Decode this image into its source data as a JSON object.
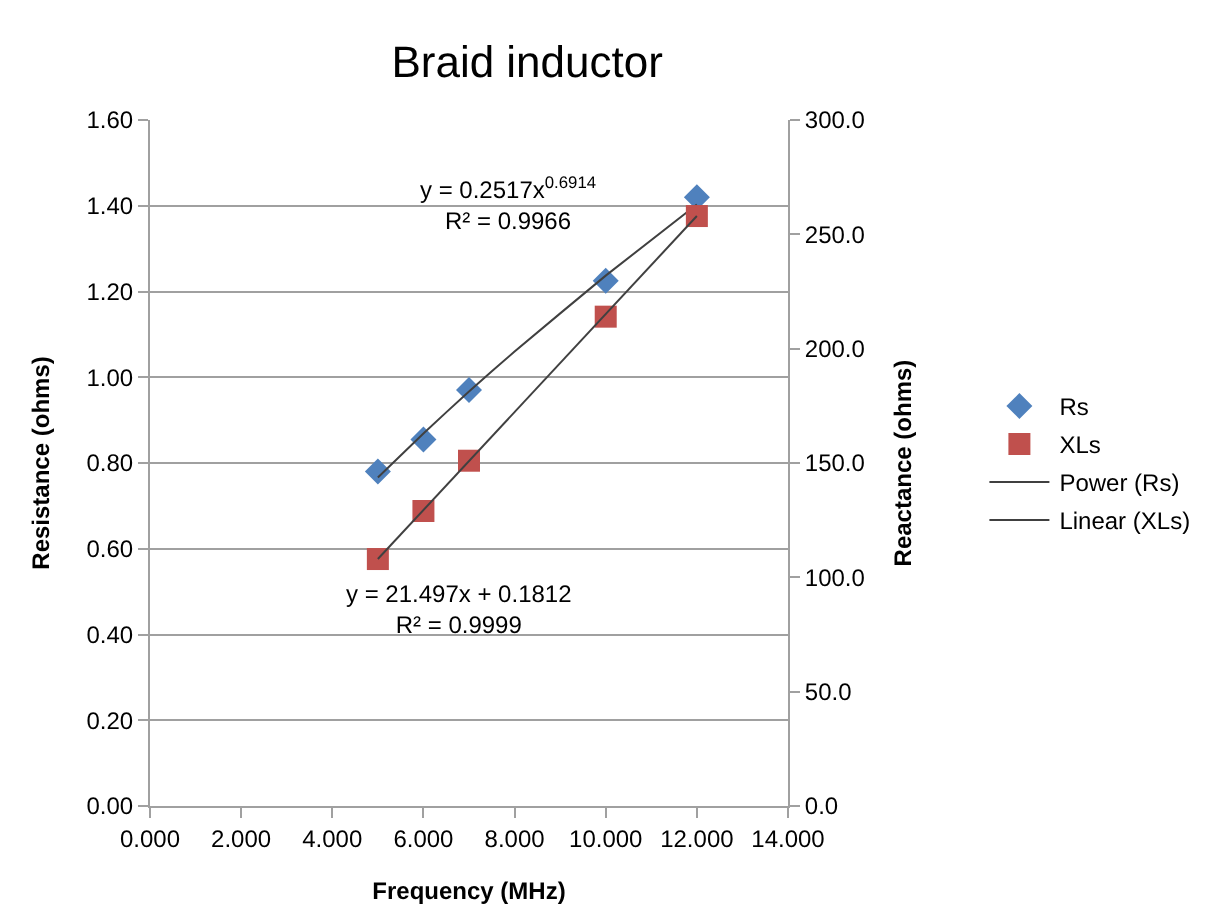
{
  "chart_data": {
    "type": "scatter",
    "title": "Braid inductor",
    "xlabel": "Frequency (MHz)",
    "ylabel": "Resistance (ohms)",
    "y2label": "Reactance (ohms)",
    "x": [
      5,
      6,
      7,
      10,
      12
    ],
    "series": [
      {
        "name": "Rs",
        "color": "#4f81bd",
        "marker": "diamond",
        "values": [
          0.78,
          0.855,
          0.97,
          1.225,
          1.42
        ]
      },
      {
        "name": "XLs",
        "color": "#c0504d",
        "marker": "square",
        "axis": "y2",
        "values": [
          108,
          129,
          151,
          214,
          258
        ]
      },
      {
        "name": "Power (Rs)",
        "type": "line",
        "color": "#404040",
        "marker": "none",
        "x": [
          5,
          6,
          7,
          8,
          10,
          12
        ],
        "values": [
          0.766,
          0.869,
          0.967,
          1.06,
          1.237,
          1.403
        ]
      },
      {
        "name": "Linear (XLs)",
        "type": "line",
        "color": "#404040",
        "marker": "none",
        "axis": "y2",
        "x": [
          5,
          12
        ],
        "values": [
          108,
          258
        ]
      }
    ],
    "annotations": [
      "y = 0.2517x$^{0.6914}$\nR² = 0.9966",
      "y = 21.497x + 0.1812\nR² = 0.9999"
    ],
    "xlim": [
      0,
      14
    ],
    "xticks": [
      {
        "value": 0,
        "label": "0.000"
      },
      {
        "value": 2,
        "label": "2.000"
      },
      {
        "value": 4,
        "label": "4.000"
      },
      {
        "value": 6,
        "label": "6.000"
      },
      {
        "value": 8,
        "label": "8.000"
      },
      {
        "value": 10,
        "label": "10.000"
      },
      {
        "value": 12,
        "label": "12.000"
      },
      {
        "value": 14,
        "label": "14.000"
      }
    ],
    "ylim": [
      0,
      1.6
    ],
    "yticks": [
      {
        "value": 0,
        "label": "0.00"
      },
      {
        "value": 0.2,
        "label": "0.20"
      },
      {
        "value": 0.4,
        "label": "0.40"
      },
      {
        "value": 0.6,
        "label": "0.60"
      },
      {
        "value": 0.8,
        "label": "0.80"
      },
      {
        "value": 1.0,
        "label": "1.00"
      },
      {
        "value": 1.2,
        "label": "1.20"
      },
      {
        "value": 1.4,
        "label": "1.40"
      },
      {
        "value": 1.6,
        "label": "1.60"
      }
    ],
    "y2lim": [
      0,
      300
    ],
    "y2ticks": [
      {
        "value": 0,
        "label": "0.0"
      },
      {
        "value": 50,
        "label": "50.0"
      },
      {
        "value": 100,
        "label": "100.0"
      },
      {
        "value": 150,
        "label": "150.0"
      },
      {
        "value": 200,
        "label": "200.0"
      },
      {
        "value": 250,
        "label": "250.0"
      },
      {
        "value": 300,
        "label": "300.0"
      }
    ],
    "grid": "y",
    "legend": "right"
  }
}
